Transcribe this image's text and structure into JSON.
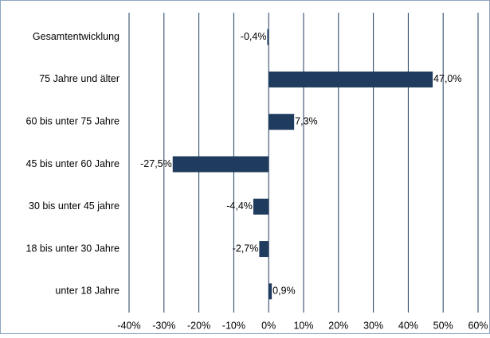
{
  "chart_data": {
    "type": "hbar",
    "categories": [
      "Gesamtentwicklung",
      "75 Jahre und älter",
      "60 bis unter 75 Jahre",
      "45 bis unter 60 Jahre",
      "30 bis unter 45 jahre",
      "18 bis unter 30 Jahre",
      "unter 18 Jahre"
    ],
    "values": [
      -0.4,
      47.0,
      7.3,
      -27.5,
      -4.4,
      -2.7,
      0.9
    ],
    "value_labels": [
      "-0,4%",
      "47,0%",
      "7,3%",
      "-27,5%",
      "-4,4%",
      "-2,7%",
      "0,9%"
    ],
    "color": "#1f3b5e",
    "xlim": [
      -40,
      60
    ],
    "xticks": [
      {
        "value": -40,
        "label": "-40%"
      },
      {
        "value": -30,
        "label": "-30%"
      },
      {
        "value": -20,
        "label": "-20%"
      },
      {
        "value": -10,
        "label": "-10%"
      },
      {
        "value": 0,
        "label": "0%"
      },
      {
        "value": 10,
        "label": "10%"
      },
      {
        "value": 20,
        "label": "20%"
      },
      {
        "value": 30,
        "label": "30%"
      },
      {
        "value": 40,
        "label": "40%"
      },
      {
        "value": 50,
        "label": "50%"
      },
      {
        "value": 60,
        "label": "60%"
      }
    ],
    "grid": true
  }
}
